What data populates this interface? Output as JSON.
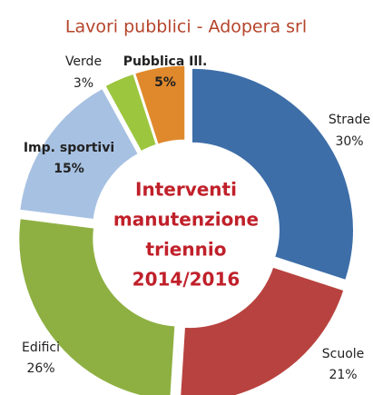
{
  "chart_data": {
    "type": "donut",
    "title": "Lavori pubblici - Adopera srl",
    "center_text": [
      "Interventi",
      "manutenzione",
      "triennio",
      "2014/2016"
    ],
    "categories": [
      "Strade",
      "Scuole",
      "Edifici",
      "Imp. sportivi",
      "Verde",
      "Pubblica Ill."
    ],
    "values": [
      30,
      21,
      26,
      15,
      3,
      5
    ],
    "value_labels": [
      "30%",
      "21%",
      "26%",
      "15%",
      "3%",
      "5%"
    ],
    "colors": [
      "#3d6ea8",
      "#b8423f",
      "#8eb042",
      "#a7c1e2",
      "#9cc63e",
      "#e0892c"
    ]
  }
}
